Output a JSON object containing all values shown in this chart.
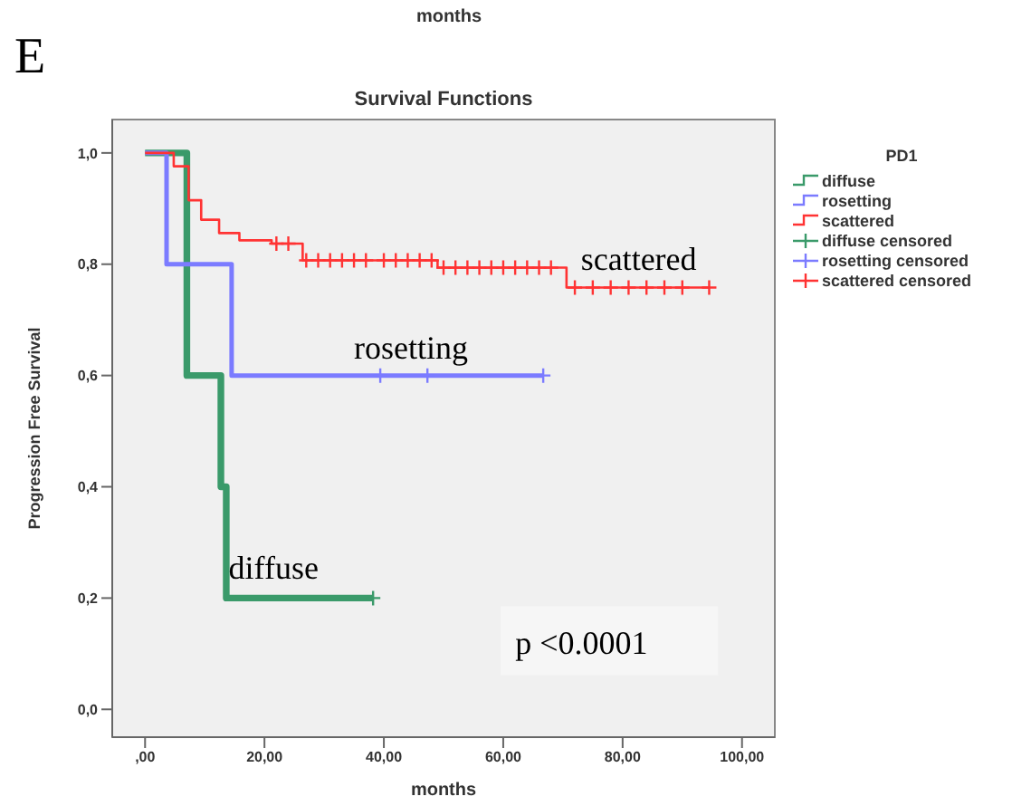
{
  "chart_data": {
    "type": "step",
    "title": "Survival Functions",
    "xlabel": "months",
    "ylabel": "Progression Free Survival",
    "legend_title": "PD1",
    "legend": "right",
    "xlim": [
      -5.5,
      105.5
    ],
    "xticks": [
      {
        "value": 0,
        "label": ",00"
      },
      {
        "value": 20,
        "label": "20,00"
      },
      {
        "value": 40,
        "label": "40,00"
      },
      {
        "value": 60,
        "label": "60,00"
      },
      {
        "value": 80,
        "label": "80,00"
      },
      {
        "value": 100,
        "label": "100,00"
      }
    ],
    "ylim": [
      -0.05,
      1.06
    ],
    "yticks": [
      {
        "value": 0,
        "label": "0,0"
      },
      {
        "value": 0.2,
        "label": "0,2"
      },
      {
        "value": 0.4,
        "label": "0,4"
      },
      {
        "value": 0.6,
        "label": "0,6"
      },
      {
        "value": 0.8,
        "label": "0,8"
      },
      {
        "value": 1,
        "label": "1,0"
      }
    ],
    "series": [
      {
        "name": "diffuse",
        "color": "#3a9a6a",
        "x": [
          0,
          7,
          12.7,
          13.6,
          38.2
        ],
        "values": [
          1,
          0.6,
          0.4,
          0.2,
          0.2
        ]
      },
      {
        "name": "rosetting",
        "color": "#7b7bff",
        "x": [
          0,
          3.6,
          14.5,
          66.7
        ],
        "values": [
          1,
          0.8,
          0.6,
          0.6
        ]
      },
      {
        "name": "scattered",
        "color": "#ff3333",
        "x": [
          0,
          4.8,
          7.3,
          9.4,
          12.4,
          15.8,
          21.2,
          26.4,
          49,
          70.6,
          94.5
        ],
        "values": [
          1,
          0.976,
          0.915,
          0.88,
          0.856,
          0.843,
          0.837,
          0.807,
          0.794,
          0.758,
          0.758
        ]
      },
      {
        "name": "diffuse censored",
        "type": "scatter",
        "marker": "cross",
        "color": "#3a9a6a",
        "x": [
          38.2
        ],
        "values": [
          0.2
        ]
      },
      {
        "name": "rosetting censored",
        "type": "scatter",
        "marker": "cross",
        "color": "#7b7bff",
        "x": [
          39.4,
          47.3,
          66.7
        ],
        "values": [
          0.6,
          0.6,
          0.6
        ]
      },
      {
        "name": "scattered censored",
        "type": "scatter",
        "marker": "cross",
        "color": "#ff3333",
        "x": [
          22,
          24,
          27,
          29,
          31,
          33,
          35,
          37,
          40,
          42,
          44,
          46,
          48,
          50,
          52,
          54,
          56,
          58,
          60,
          62,
          64,
          66,
          68,
          72,
          75,
          78,
          81,
          84,
          87,
          90,
          94.5
        ],
        "values": [
          0.837,
          0.837,
          0.807,
          0.807,
          0.807,
          0.807,
          0.807,
          0.807,
          0.807,
          0.807,
          0.807,
          0.807,
          0.807,
          0.794,
          0.794,
          0.794,
          0.794,
          0.794,
          0.794,
          0.794,
          0.794,
          0.794,
          0.794,
          0.758,
          0.758,
          0.758,
          0.758,
          0.758,
          0.758,
          0.758,
          0.758
        ]
      }
    ],
    "annotations": [
      "E",
      "months",
      "scattered",
      "rosetting",
      "diffuse",
      "p <0.0001"
    ]
  }
}
